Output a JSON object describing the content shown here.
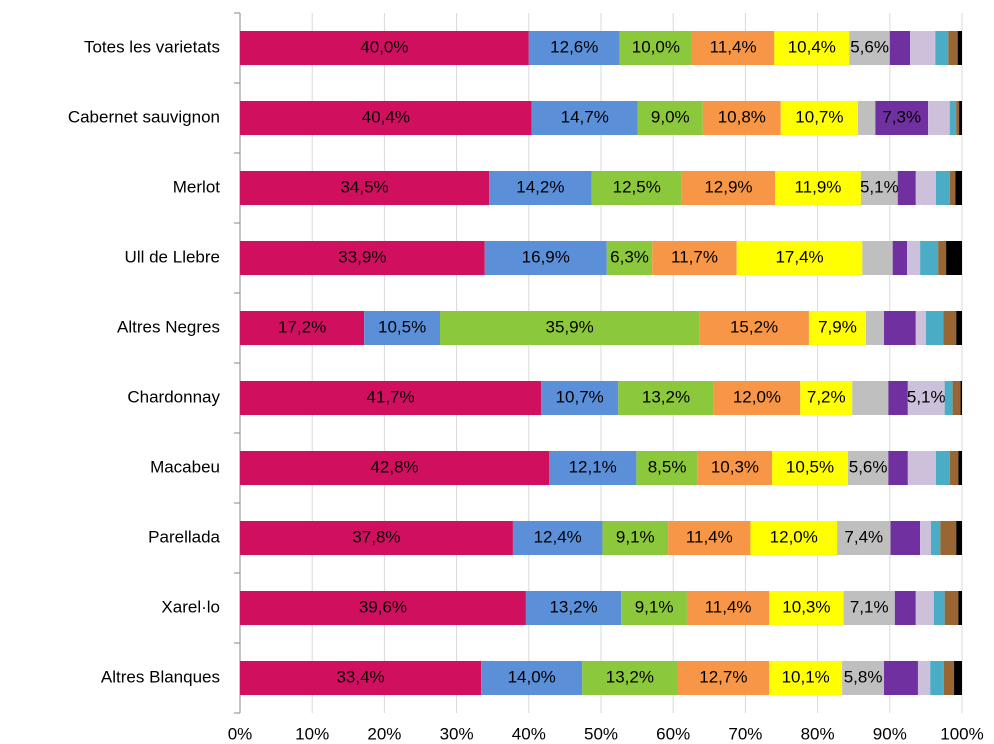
{
  "chart_data": {
    "type": "stacked_barh",
    "categories": [
      "Totes les varietats",
      "Cabernet sauvignon",
      "Merlot",
      "Ull de Llebre",
      "Altres Negres",
      "Chardonnay",
      "Macabeu",
      "Parellada",
      "Xarel·lo",
      "Altres Blanques"
    ],
    "series": [
      {
        "color": "#d10f5f",
        "label_color": "#ffffff",
        "values": [
          40.0,
          40.4,
          34.5,
          33.9,
          17.2,
          41.7,
          42.8,
          37.8,
          39.6,
          33.4
        ],
        "value_labels": [
          "40,0%",
          "40,4%",
          "34,5%",
          "33,9%",
          "17,2%",
          "41,7%",
          "42,8%",
          "37,8%",
          "39,6%",
          "33,4%"
        ]
      },
      {
        "color": "#5b8fd8",
        "label_color": "#ffffff",
        "values": [
          12.6,
          14.7,
          14.2,
          16.9,
          10.5,
          10.7,
          12.1,
          12.4,
          13.2,
          14.0
        ],
        "value_labels": [
          "12,6%",
          "14,7%",
          "14,2%",
          "16,9%",
          "10,5%",
          "10,7%",
          "12,1%",
          "12,4%",
          "13,2%",
          "14,0%"
        ]
      },
      {
        "color": "#8cc83c",
        "label_color": "#000000",
        "values": [
          10.0,
          9.0,
          12.5,
          6.3,
          35.9,
          13.2,
          8.5,
          9.1,
          9.1,
          13.2
        ],
        "value_labels": [
          "10,0%",
          "9,0%",
          "12,5%",
          "6,3%",
          "35,9%",
          "13,2%",
          "8,5%",
          "9,1%",
          "9,1%",
          "13,2%"
        ]
      },
      {
        "color": "#f79646",
        "label_color": "#000000",
        "values": [
          11.4,
          10.8,
          12.9,
          11.7,
          15.2,
          12.0,
          10.3,
          11.4,
          11.4,
          12.7
        ],
        "value_labels": [
          "11,4%",
          "10,8%",
          "12,9%",
          "11,7%",
          "15,2%",
          "12,0%",
          "10,3%",
          "11,4%",
          "11,4%",
          "12,7%"
        ]
      },
      {
        "color": "#ffff00",
        "label_color": "#000000",
        "values": [
          10.4,
          10.7,
          11.9,
          17.4,
          7.9,
          7.2,
          10.5,
          12.0,
          10.3,
          10.1
        ],
        "value_labels": [
          "10,4%",
          "10,7%",
          "11,9%",
          "17,4%",
          "7,9%",
          "7,2%",
          "10,5%",
          "12,0%",
          "10,3%",
          "10,1%"
        ]
      },
      {
        "color": "#bfbfbf",
        "label_color": "#000000",
        "values": [
          5.6,
          2.4,
          5.1,
          4.2,
          2.5,
          5.0,
          5.6,
          7.4,
          7.1,
          5.8
        ],
        "value_labels": [
          "5,6%",
          null,
          "5,1%",
          null,
          null,
          null,
          "5,6%",
          "7,4%",
          "7,1%",
          "5,8%"
        ]
      },
      {
        "color": "#7030a0",
        "label_color": "#ffffff",
        "values": [
          2.8,
          7.3,
          2.5,
          2.0,
          4.4,
          2.7,
          2.7,
          4.1,
          2.9,
          4.7
        ],
        "value_labels": [
          null,
          "7,3%",
          null,
          null,
          null,
          null,
          null,
          null,
          null,
          null
        ]
      },
      {
        "color": "#ccc0da",
        "label_color": "#000000",
        "values": [
          3.5,
          3.0,
          2.8,
          1.8,
          1.4,
          5.1,
          3.9,
          1.5,
          2.5,
          1.7
        ],
        "value_labels": [
          null,
          null,
          null,
          null,
          null,
          "5,1%",
          null,
          null,
          null,
          null
        ]
      },
      {
        "color": "#4bacc6",
        "label_color": "#000000",
        "values": [
          1.8,
          0.9,
          1.9,
          2.5,
          2.4,
          1.1,
          1.9,
          1.3,
          1.5,
          1.9
        ],
        "value_labels": [
          null,
          null,
          null,
          null,
          null,
          null,
          null,
          null,
          null,
          null
        ]
      },
      {
        "color": "#996633",
        "label_color": "#000000",
        "values": [
          1.3,
          0.4,
          0.8,
          1.1,
          1.8,
          1.1,
          1.2,
          2.2,
          1.9,
          1.4
        ],
        "value_labels": [
          null,
          null,
          null,
          null,
          null,
          null,
          null,
          null,
          null,
          null
        ]
      },
      {
        "color": "#000000",
        "label_color": "#ffffff",
        "values": [
          0.6,
          0.4,
          0.9,
          2.2,
          0.8,
          0.2,
          0.5,
          0.8,
          0.5,
          1.1
        ],
        "value_labels": [
          null,
          null,
          null,
          null,
          null,
          null,
          null,
          null,
          null,
          null
        ]
      }
    ],
    "xlim": [
      0,
      100
    ],
    "xticks": [
      {
        "value": 0,
        "label": "0%"
      },
      {
        "value": 10,
        "label": "10%"
      },
      {
        "value": 20,
        "label": "20%"
      },
      {
        "value": 30,
        "label": "30%"
      },
      {
        "value": 40,
        "label": "40%"
      },
      {
        "value": 50,
        "label": "50%"
      },
      {
        "value": 60,
        "label": "60%"
      },
      {
        "value": 70,
        "label": "70%"
      },
      {
        "value": 80,
        "label": "80%"
      },
      {
        "value": 90,
        "label": "90%"
      },
      {
        "value": 100,
        "label": "100%"
      }
    ],
    "grid": true
  }
}
